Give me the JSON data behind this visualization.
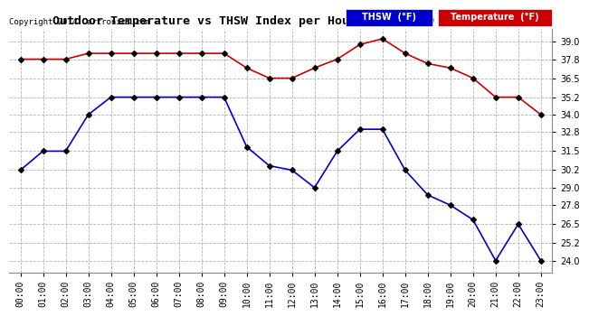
{
  "title": "Outdoor Temperature vs THSW Index per Hour (24 Hours)  20140319",
  "copyright": "Copyright 2014 Cartronics.com",
  "background_color": "#ffffff",
  "grid_color": "#aaaaaa",
  "hours": [
    "00:00",
    "01:00",
    "02:00",
    "03:00",
    "04:00",
    "05:00",
    "06:00",
    "07:00",
    "08:00",
    "09:00",
    "10:00",
    "11:00",
    "12:00",
    "13:00",
    "14:00",
    "15:00",
    "16:00",
    "17:00",
    "18:00",
    "19:00",
    "20:00",
    "21:00",
    "22:00",
    "23:00"
  ],
  "temperature": [
    37.8,
    37.8,
    37.8,
    38.2,
    38.2,
    38.2,
    38.2,
    38.2,
    38.2,
    38.2,
    37.2,
    36.5,
    36.5,
    37.2,
    37.8,
    38.8,
    39.2,
    38.2,
    37.5,
    37.2,
    36.5,
    35.2,
    35.2,
    34.0
  ],
  "thsw": [
    30.2,
    31.5,
    31.5,
    34.0,
    35.2,
    35.2,
    35.2,
    35.2,
    35.2,
    35.2,
    31.8,
    30.5,
    30.2,
    29.0,
    31.5,
    33.0,
    33.0,
    30.2,
    28.5,
    27.8,
    26.8,
    24.0,
    26.5,
    24.0
  ],
  "temp_color": "#cc0000",
  "thsw_color": "#0000cc",
  "marker_color": "#000000",
  "ylim_min": 23.2,
  "ylim_max": 39.9,
  "yticks": [
    24.0,
    25.2,
    26.5,
    27.8,
    29.0,
    30.2,
    31.5,
    32.8,
    34.0,
    35.2,
    36.5,
    37.8,
    39.0
  ],
  "legend_thsw_bg": "#0000cc",
  "legend_temp_bg": "#cc0000",
  "legend_thsw_text": "THSW  (°F)",
  "legend_temp_text": "Temperature  (°F)"
}
